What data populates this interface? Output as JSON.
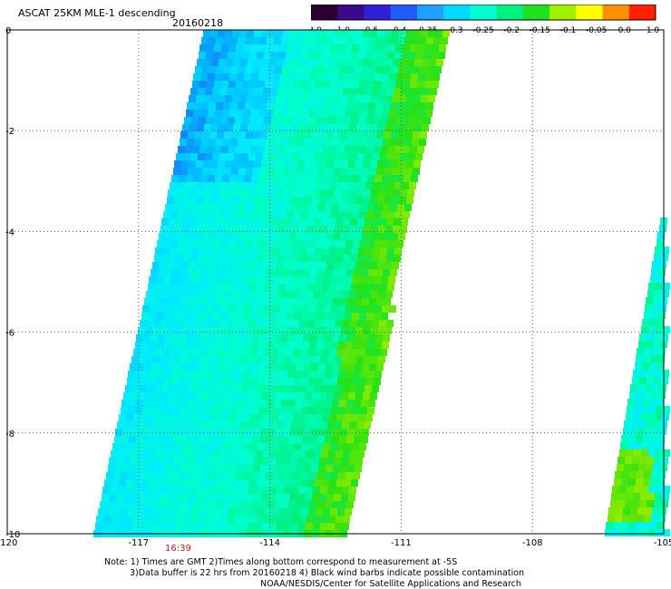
{
  "header": {
    "title": "ASCAT 25KM MLE-1 descending",
    "date": "20160218"
  },
  "colorbar": {
    "labels": [
      "-3.0",
      "-1.0",
      "-0.5",
      "-0.4",
      "-0.35",
      "-0.3",
      "-0.25",
      "-0.2",
      "-0.15",
      "-0.1",
      "-0.05",
      "0.0",
      "1.0"
    ],
    "colors": [
      "#2b0030",
      "#3a0a8a",
      "#3020d8",
      "#1e5cff",
      "#1ea0ff",
      "#00d8ff",
      "#00ffd0",
      "#00f080",
      "#20e020",
      "#a0f000",
      "#ffff00",
      "#ff9000",
      "#ff2000"
    ]
  },
  "axes": {
    "x_ticks": [
      "-120",
      "-117",
      "-114",
      "-111",
      "-108",
      "-105"
    ],
    "y_ticks": [
      "0",
      "-2",
      "-4",
      "-6",
      "-8",
      "-10"
    ],
    "xlim": [
      -120,
      -105
    ],
    "ylim": [
      -10,
      0
    ]
  },
  "time_label": "16:39",
  "notes": [
    "Note: 1) Times are GMT 2)Times along bottom correspond to measurement at -5S",
    "3)Data buffer is 22 hrs from 20160218 4) Black wind barbs indicate possible contamination",
    "NOAA/NESDIS/Center for Satellite Applications and Research"
  ]
}
